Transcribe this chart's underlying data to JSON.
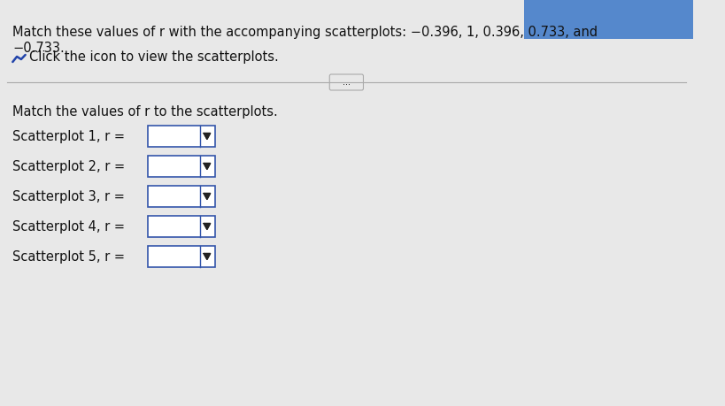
{
  "title_line1": "Match these values of r with the accompanying scatterplots: −0.396, 1, 0.396, 0.733, and",
  "title_line2": "−0.733.",
  "click_text": "Click the icon to view the scatterplots.",
  "instruction": "Match the values of r to the scatterplots.",
  "scatterplot_labels": [
    "Scatterplot 1, r =",
    "Scatterplot 2, r =",
    "Scatterplot 3, r =",
    "Scatterplot 4, r =",
    "Scatterplot 5, r ="
  ],
  "bg_color": "#e8e8e8",
  "box_color": "#ffffff",
  "box_border_color": "#3355aa",
  "text_color": "#111111",
  "separator_color": "#aaaaaa",
  "dropdown_arrow_color": "#222222",
  "icon_color": "#2244aa",
  "top_bar_color": "#5588cc",
  "font_size_title": 10.5,
  "font_size_label": 10.5,
  "font_size_instruction": 10.5
}
